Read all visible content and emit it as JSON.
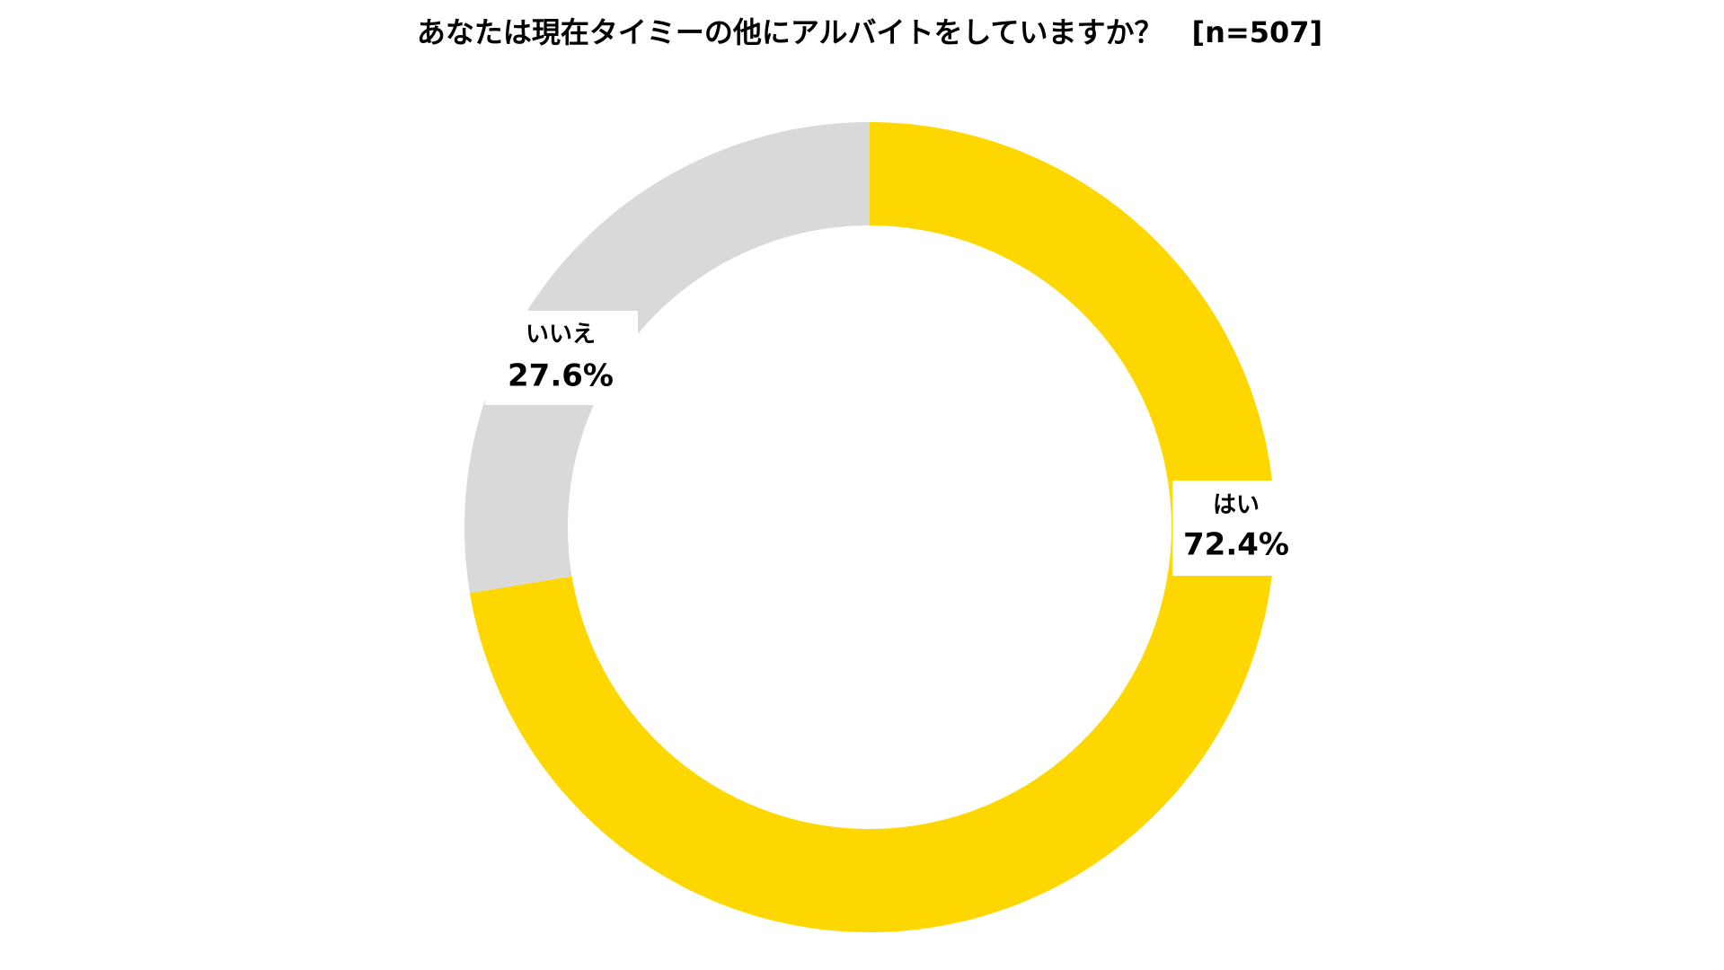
{
  "chart_data": {
    "type": "pie",
    "title": "あなたは現在タイミーの他にアルバイトをしていますか？　[n=507]",
    "categories": [
      "はい",
      "いいえ"
    ],
    "values": [
      72.4,
      27.6
    ],
    "value_labels": [
      "72.4%",
      "27.6%"
    ],
    "colors": [
      "#FFD700",
      "#D9D9D9"
    ],
    "donut": true
  }
}
